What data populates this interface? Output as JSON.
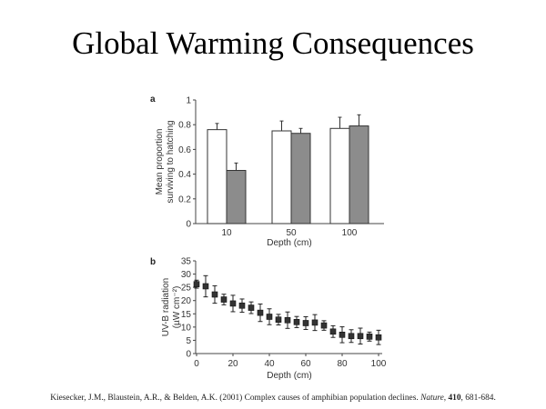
{
  "slide": {
    "title": "Global Warming Consequences",
    "citation_authors": "Kiesecker, J.M., Blaustein, A.R., & Belden, A.K. (2001) Complex causes of amphibian population declines. ",
    "citation_journal": "Nature",
    "citation_volume": "410",
    "citation_pages": ", 681-684."
  },
  "chart_data": [
    {
      "panel": "a",
      "type": "bar",
      "xlabel": "Depth (cm)",
      "ylabel": [
        "Mean proportion",
        "surviving to hatching"
      ],
      "ylim": [
        0,
        1
      ],
      "yticks": [
        0,
        0.2,
        0.4,
        0.6,
        0.8,
        1
      ],
      "ytick_labels": [
        "0",
        "0.2",
        "0.4",
        "0.6",
        "0.8",
        "1"
      ],
      "categories": [
        "10",
        "50",
        "100"
      ],
      "series": [
        {
          "name": "white",
          "color": "#ffffff",
          "values": [
            0.76,
            0.75,
            0.77
          ],
          "errors": [
            0.05,
            0.08,
            0.09
          ]
        },
        {
          "name": "grey",
          "color": "#8c8c8c",
          "values": [
            0.43,
            0.73,
            0.79
          ],
          "errors": [
            0.06,
            0.04,
            0.09
          ]
        }
      ]
    },
    {
      "panel": "b",
      "type": "scatter",
      "xlabel": "Depth (cm)",
      "ylabel": [
        "UV-B radiation",
        "(µW cm⁻²)"
      ],
      "xlim": [
        0,
        100
      ],
      "ylim": [
        0,
        35
      ],
      "xticks": [
        0,
        20,
        40,
        60,
        80,
        100
      ],
      "yticks": [
        0,
        5,
        10,
        15,
        20,
        25,
        30,
        35
      ],
      "x": [
        0,
        5,
        10,
        15,
        20,
        25,
        30,
        35,
        40,
        45,
        50,
        55,
        60,
        65,
        70,
        75,
        80,
        85,
        90,
        95,
        100
      ],
      "y": [
        26.2,
        25.4,
        22.3,
        20.4,
        18.9,
        18.1,
        17.3,
        15.4,
        13.9,
        12.8,
        12.6,
        11.9,
        11.5,
        11.7,
        10.6,
        8.3,
        7.1,
        6.6,
        6.6,
        6.4,
        6.1
      ],
      "err": [
        1.5,
        4.0,
        3.3,
        2.0,
        3.1,
        2.5,
        2.2,
        3.3,
        3.0,
        2.0,
        3.1,
        2.1,
        2.4,
        3.0,
        1.8,
        2.2,
        3.0,
        2.4,
        3.0,
        1.7,
        2.7
      ]
    }
  ]
}
